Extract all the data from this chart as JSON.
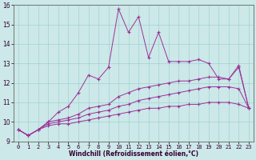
{
  "title": "",
  "xlabel": "Windchill (Refroidissement éolien,°C)",
  "ylabel": "",
  "background_color": "#cce8e8",
  "line_color": "#993399",
  "xlim": [
    -0.5,
    23.5
  ],
  "ylim": [
    9,
    16
  ],
  "xticks": [
    0,
    1,
    2,
    3,
    4,
    5,
    6,
    7,
    8,
    9,
    10,
    11,
    12,
    13,
    14,
    15,
    16,
    17,
    18,
    19,
    20,
    21,
    22,
    23
  ],
  "yticks": [
    9,
    10,
    11,
    12,
    13,
    14,
    15,
    16
  ],
  "series": [
    {
      "x": [
        0,
        1,
        2,
        3,
        4,
        5,
        6,
        7,
        8,
        9,
        10,
        11,
        12,
        13,
        14,
        15,
        16,
        17,
        18,
        19,
        20,
        21,
        22,
        23
      ],
      "y": [
        9.6,
        9.3,
        9.6,
        10.0,
        10.5,
        10.8,
        11.5,
        12.4,
        12.2,
        12.8,
        15.8,
        14.6,
        15.4,
        13.3,
        14.6,
        13.1,
        13.1,
        13.1,
        13.2,
        13.0,
        12.2,
        12.2,
        12.8,
        10.7
      ]
    },
    {
      "x": [
        0,
        1,
        2,
        3,
        4,
        5,
        6,
        7,
        8,
        9,
        10,
        11,
        12,
        13,
        14,
        15,
        16,
        17,
        18,
        19,
        20,
        21,
        22,
        23
      ],
      "y": [
        9.6,
        9.3,
        9.6,
        10.0,
        10.1,
        10.2,
        10.4,
        10.7,
        10.8,
        10.9,
        11.3,
        11.5,
        11.7,
        11.8,
        11.9,
        12.0,
        12.1,
        12.1,
        12.2,
        12.3,
        12.3,
        12.2,
        12.9,
        10.7
      ]
    },
    {
      "x": [
        0,
        1,
        2,
        3,
        4,
        5,
        6,
        7,
        8,
        9,
        10,
        11,
        12,
        13,
        14,
        15,
        16,
        17,
        18,
        19,
        20,
        21,
        22,
        23
      ],
      "y": [
        9.6,
        9.3,
        9.6,
        9.9,
        10.0,
        10.1,
        10.2,
        10.4,
        10.5,
        10.6,
        10.8,
        10.9,
        11.1,
        11.2,
        11.3,
        11.4,
        11.5,
        11.6,
        11.7,
        11.8,
        11.8,
        11.8,
        11.7,
        10.7
      ]
    },
    {
      "x": [
        0,
        1,
        2,
        3,
        4,
        5,
        6,
        7,
        8,
        9,
        10,
        11,
        12,
        13,
        14,
        15,
        16,
        17,
        18,
        19,
        20,
        21,
        22,
        23
      ],
      "y": [
        9.6,
        9.3,
        9.6,
        9.8,
        9.9,
        9.9,
        10.0,
        10.1,
        10.2,
        10.3,
        10.4,
        10.5,
        10.6,
        10.7,
        10.7,
        10.8,
        10.8,
        10.9,
        10.9,
        11.0,
        11.0,
        11.0,
        10.9,
        10.7
      ]
    }
  ]
}
